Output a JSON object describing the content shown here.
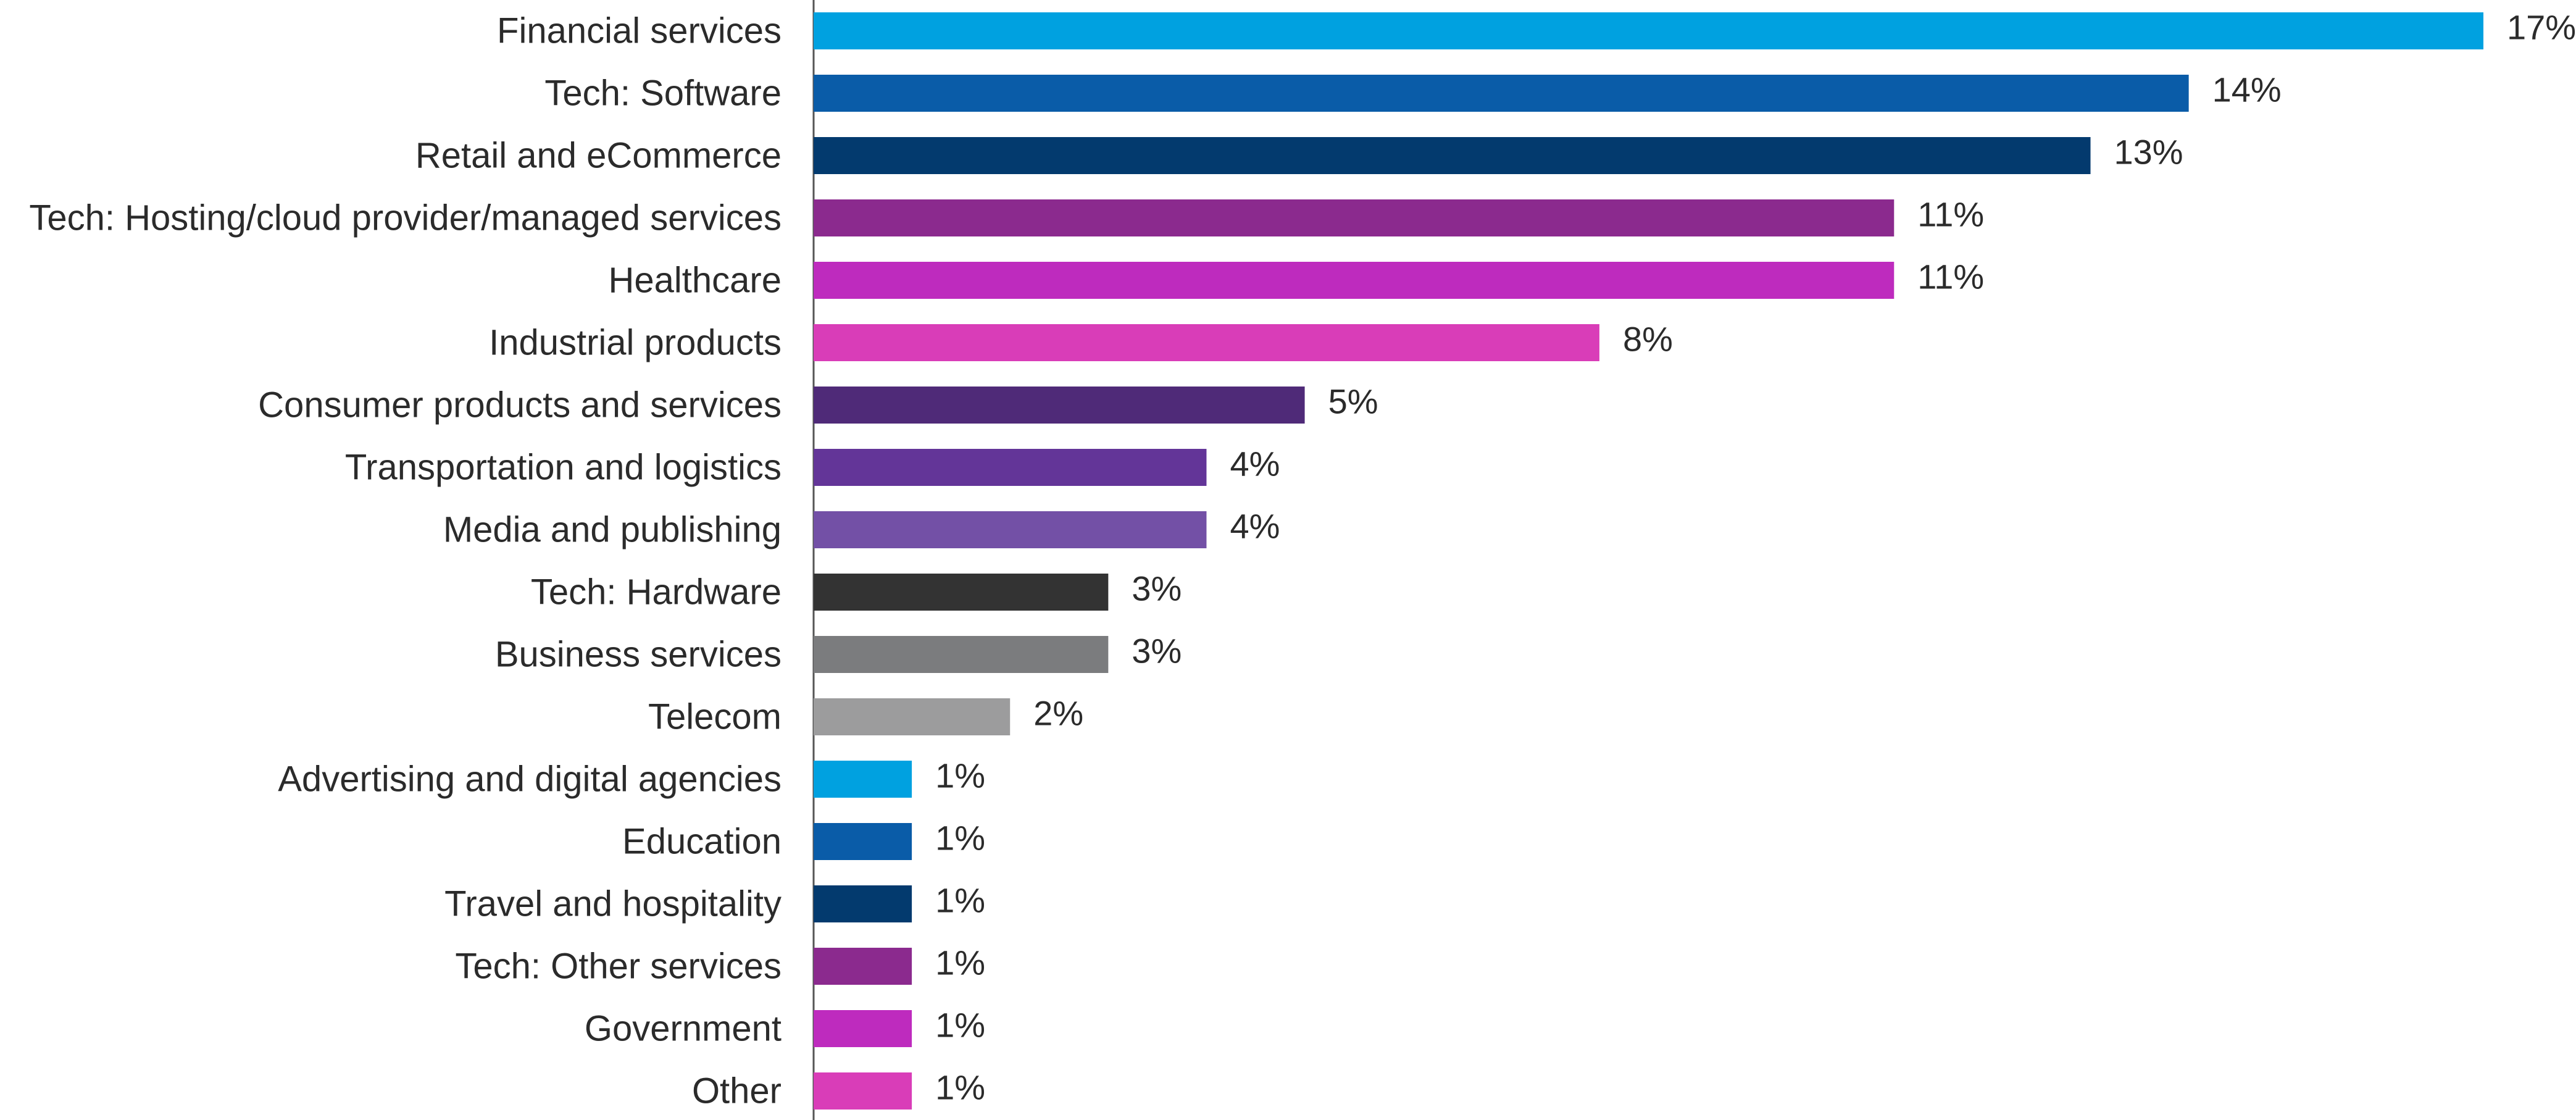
{
  "chart_data": {
    "type": "bar",
    "orientation": "horizontal",
    "categories": [
      "Financial services",
      "Tech: Software",
      "Retail and eCommerce",
      "Tech: Hosting/cloud provider/managed services",
      "Healthcare",
      "Industrial products",
      "Consumer products and services",
      "Transportation and logistics",
      "Media and publishing",
      "Tech: Hardware",
      "Business services",
      "Telecom",
      "Advertising and digital agencies",
      "Education",
      "Travel and hospitality",
      "Tech: Other services",
      "Government",
      "Other"
    ],
    "values": [
      17,
      14,
      13,
      11,
      11,
      8,
      5,
      4,
      4,
      3,
      3,
      2,
      1,
      1,
      1,
      1,
      1,
      1
    ],
    "value_labels": [
      "17%",
      "14%",
      "13%",
      "11%",
      "11%",
      "8%",
      "5%",
      "4%",
      "4%",
      "3%",
      "3%",
      "2%",
      "1%",
      "1%",
      "1%",
      "1%",
      "1%",
      "1%"
    ],
    "colors": [
      "#00A1E0",
      "#0A5CA8",
      "#033A6E",
      "#8B2A8E",
      "#BE2BBE",
      "#D93DB8",
      "#4F2A78",
      "#633598",
      "#7350A6",
      "#333333",
      "#7B7C7E",
      "#9C9C9D",
      "#00A1E0",
      "#0A5CA8",
      "#033A6E",
      "#8B2A8E",
      "#BE2BBE",
      "#D93DB8"
    ],
    "unit": "%",
    "xlim": [
      0,
      17
    ],
    "title": "",
    "xlabel": "",
    "ylabel": "",
    "grid": false,
    "legend": "none",
    "axis_line_color": "#555555"
  }
}
